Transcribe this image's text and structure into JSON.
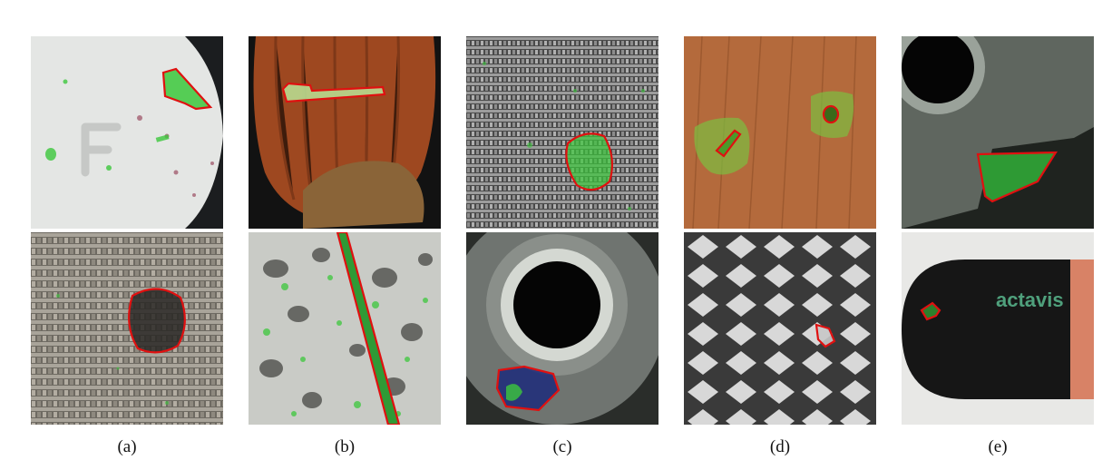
{
  "figure": {
    "captions": [
      "(a)",
      "(b)",
      "(c)",
      "(d)",
      "(e)"
    ],
    "capsule_logo_text": "actavis"
  },
  "colors": {
    "anomaly_outline": "#e01010",
    "prediction_overlay": "#3cc83c",
    "background": "#ffffff"
  },
  "tiles": [
    {
      "column": "a",
      "row": "top",
      "subject": "pill"
    },
    {
      "column": "a",
      "row": "bottom",
      "subject": "fabric-hole"
    },
    {
      "column": "b",
      "row": "top",
      "subject": "hazelnut"
    },
    {
      "column": "b",
      "row": "bottom",
      "subject": "tile-scratch"
    },
    {
      "column": "c",
      "row": "top",
      "subject": "carpet"
    },
    {
      "column": "c",
      "row": "bottom",
      "subject": "metal-nut"
    },
    {
      "column": "d",
      "row": "top",
      "subject": "wood"
    },
    {
      "column": "d",
      "row": "bottom",
      "subject": "grid"
    },
    {
      "column": "e",
      "row": "top",
      "subject": "metal-nut-edge"
    },
    {
      "column": "e",
      "row": "bottom",
      "subject": "capsule"
    }
  ]
}
